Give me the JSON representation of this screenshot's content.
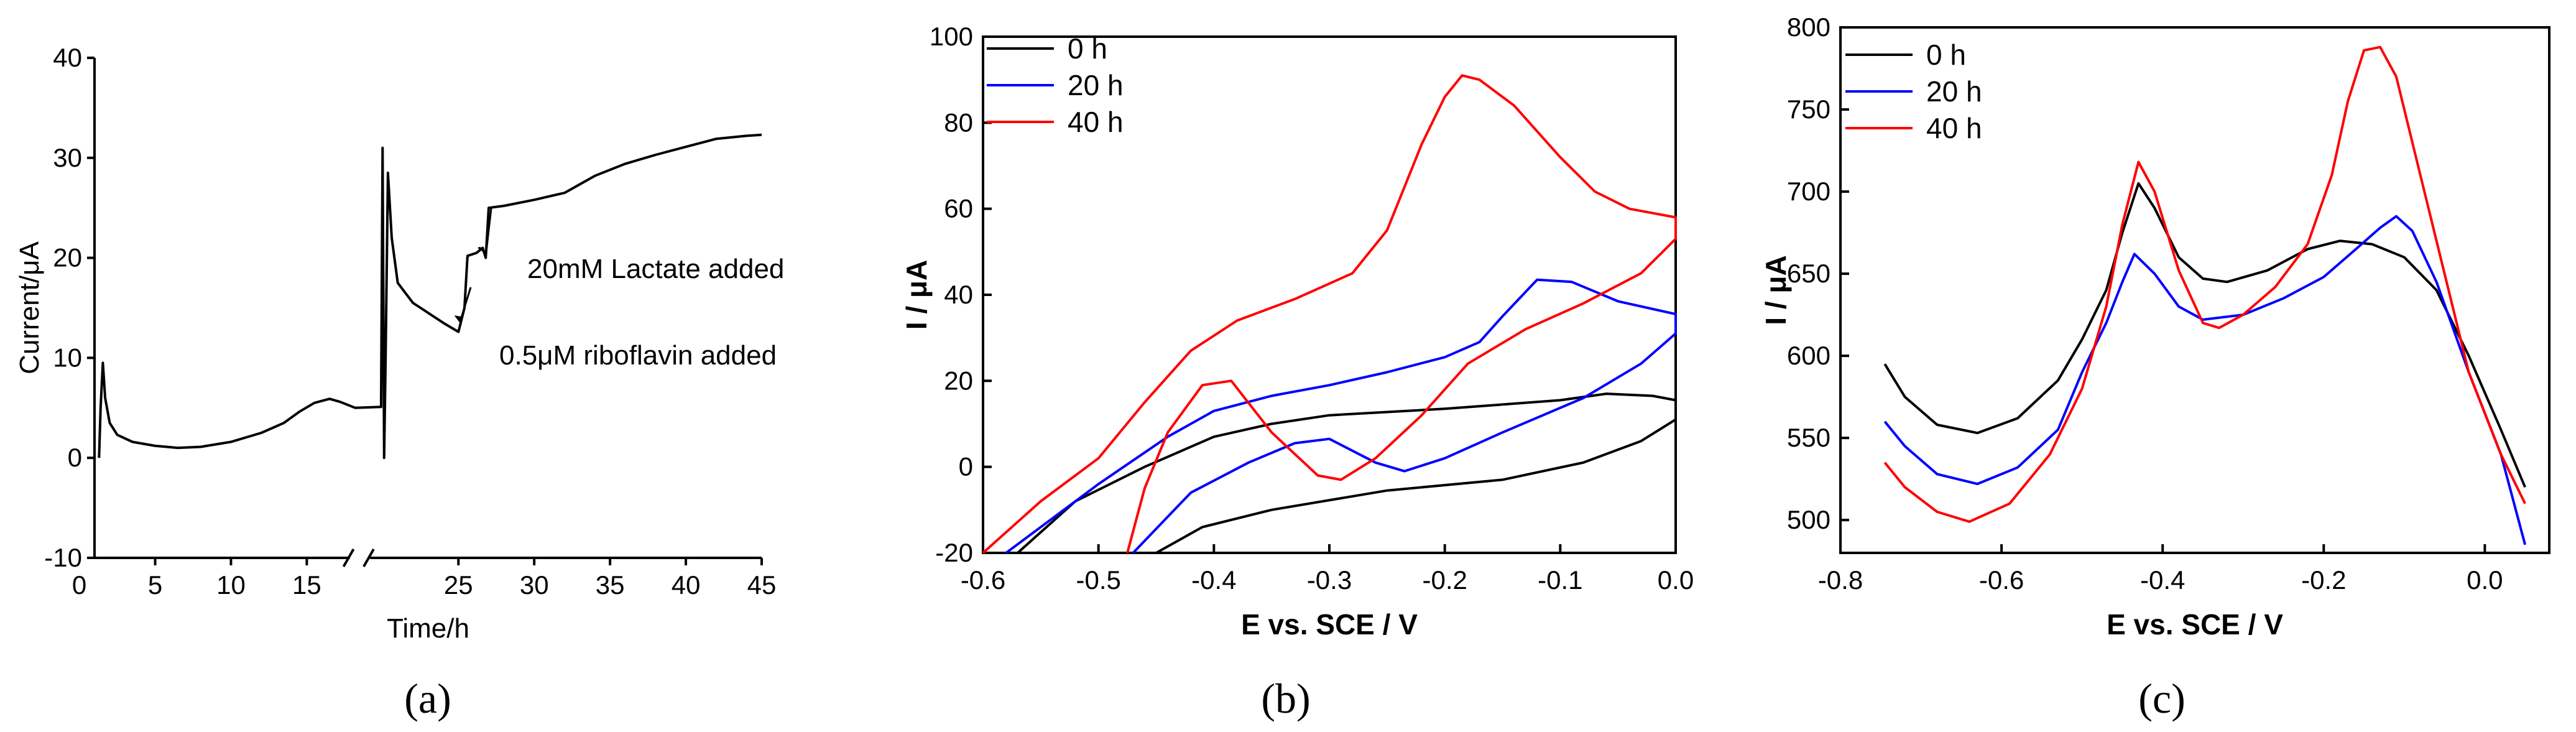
{
  "chart_data": [
    {
      "type": "line",
      "panel_label": "(a)",
      "xlabel": "Time/h",
      "ylabel": "Current/μA",
      "xlim": [
        0,
        45
      ],
      "ylim": [
        -10,
        40
      ],
      "axis_break_between": [
        18,
        19
      ],
      "xticks": [
        0,
        5,
        10,
        15,
        25,
        30,
        35,
        40,
        45
      ],
      "yticks": [
        -10,
        0,
        10,
        20,
        30,
        40
      ],
      "series": [
        {
          "values": [
            [
              1.3,
              0
            ],
            [
              1.4,
              5
            ],
            [
              1.55,
              9.5
            ],
            [
              1.7,
              6
            ],
            [
              2,
              3.5
            ],
            [
              2.5,
              2.3
            ],
            [
              3.5,
              1.6
            ],
            [
              5,
              1.2
            ],
            [
              6.5,
              1.0
            ],
            [
              8,
              1.1
            ],
            [
              10,
              1.6
            ],
            [
              12,
              2.5
            ],
            [
              13.5,
              3.5
            ],
            [
              14.5,
              4.6
            ],
            [
              15.5,
              5.5
            ],
            [
              16.5,
              5.9
            ],
            [
              17.2,
              5.6
            ],
            [
              18.2,
              5.0
            ],
            [
              19.9,
              5.1
            ],
            [
              20,
              31
            ],
            [
              20.05,
              15
            ],
            [
              20.1,
              0
            ],
            [
              20.2,
              10
            ],
            [
              20.35,
              28.5
            ],
            [
              20.6,
              22
            ],
            [
              21,
              17.5
            ],
            [
              22,
              15.5
            ],
            [
              23,
              14.5
            ],
            [
              24,
              13.5
            ],
            [
              25,
              12.6
            ],
            [
              25.4,
              15
            ],
            [
              25.6,
              20.2
            ],
            [
              26.2,
              20.5
            ],
            [
              26.6,
              21
            ],
            [
              26.8,
              20
            ],
            [
              27,
              25
            ],
            [
              28,
              25.2
            ],
            [
              30,
              25.8
            ],
            [
              32,
              26.5
            ],
            [
              34,
              28.2
            ],
            [
              36,
              29.4
            ],
            [
              38,
              30.3
            ],
            [
              40,
              31.1
            ],
            [
              42,
              31.9
            ],
            [
              44,
              32.2
            ],
            [
              45,
              32.3
            ]
          ]
        }
      ],
      "annotations": [
        {
          "text": "0.5μM riboflavin added",
          "points_to": [
            25.3,
            13
          ]
        },
        {
          "text": "20mM Lactate added",
          "points_to": [
            27,
            20
          ]
        }
      ]
    },
    {
      "type": "line",
      "panel_label": "(b)",
      "xlabel": "E vs. SCE / V",
      "ylabel": "I / μA",
      "xlim": [
        -0.6,
        0.0
      ],
      "ylim": [
        -20,
        100
      ],
      "xticks": [
        -0.6,
        -0.5,
        -0.4,
        -0.3,
        -0.2,
        -0.1,
        0.0
      ],
      "yticks": [
        -20,
        0,
        20,
        40,
        60,
        80,
        100
      ],
      "legend_position": "top-left",
      "series": [
        {
          "name": "0 h",
          "color": "#000000",
          "values": [
            [
              -0.57,
              -20
            ],
            [
              -0.52,
              -8
            ],
            [
              -0.46,
              0
            ],
            [
              -0.4,
              7
            ],
            [
              -0.35,
              10
            ],
            [
              -0.3,
              12
            ],
            [
              -0.2,
              13.5
            ],
            [
              -0.1,
              15.5
            ],
            [
              -0.06,
              17
            ],
            [
              -0.02,
              16.5
            ],
            [
              0.0,
              15.5
            ],
            [
              0.0,
              11
            ],
            [
              -0.03,
              6
            ],
            [
              -0.08,
              1
            ],
            [
              -0.15,
              -3
            ],
            [
              -0.25,
              -5.5
            ],
            [
              -0.35,
              -10
            ],
            [
              -0.41,
              -14
            ],
            [
              -0.45,
              -20
            ]
          ]
        },
        {
          "name": "20 h",
          "color": "#0000ff",
          "values": [
            [
              -0.58,
              -20
            ],
            [
              -0.5,
              -4
            ],
            [
              -0.44,
              7
            ],
            [
              -0.4,
              13
            ],
            [
              -0.35,
              16.5
            ],
            [
              -0.3,
              19
            ],
            [
              -0.25,
              22
            ],
            [
              -0.2,
              25.5
            ],
            [
              -0.17,
              29
            ],
            [
              -0.15,
              35
            ],
            [
              -0.12,
              43.5
            ],
            [
              -0.09,
              43
            ],
            [
              -0.05,
              38.5
            ],
            [
              0.0,
              35.5
            ],
            [
              0.0,
              31
            ],
            [
              -0.03,
              24
            ],
            [
              -0.08,
              16
            ],
            [
              -0.15,
              8
            ],
            [
              -0.2,
              2
            ],
            [
              -0.235,
              -1
            ],
            [
              -0.26,
              1
            ],
            [
              -0.3,
              6.5
            ],
            [
              -0.33,
              5.5
            ],
            [
              -0.37,
              1
            ],
            [
              -0.42,
              -6
            ],
            [
              -0.47,
              -20
            ]
          ]
        },
        {
          "name": "40 h",
          "color": "#ff0000",
          "values": [
            [
              -0.6,
              -20
            ],
            [
              -0.55,
              -8
            ],
            [
              -0.5,
              2
            ],
            [
              -0.46,
              15
            ],
            [
              -0.42,
              27
            ],
            [
              -0.38,
              34
            ],
            [
              -0.33,
              39
            ],
            [
              -0.28,
              45
            ],
            [
              -0.25,
              55
            ],
            [
              -0.22,
              75
            ],
            [
              -0.2,
              86
            ],
            [
              -0.185,
              91
            ],
            [
              -0.17,
              90
            ],
            [
              -0.14,
              84
            ],
            [
              -0.1,
              72
            ],
            [
              -0.07,
              64
            ],
            [
              -0.04,
              60
            ],
            [
              0.0,
              58
            ],
            [
              0.0,
              53
            ],
            [
              -0.03,
              45
            ],
            [
              -0.08,
              38
            ],
            [
              -0.13,
              32
            ],
            [
              -0.18,
              24
            ],
            [
              -0.22,
              12
            ],
            [
              -0.26,
              2
            ],
            [
              -0.29,
              -3
            ],
            [
              -0.31,
              -2
            ],
            [
              -0.35,
              8
            ],
            [
              -0.385,
              20
            ],
            [
              -0.41,
              19
            ],
            [
              -0.44,
              8
            ],
            [
              -0.46,
              -5
            ],
            [
              -0.475,
              -20
            ]
          ]
        }
      ]
    },
    {
      "type": "line",
      "panel_label": "(c)",
      "xlabel": "E vs. SCE / V",
      "ylabel": "I / μA",
      "xlim": [
        -0.8,
        0.08
      ],
      "ylim": [
        480,
        800
      ],
      "xticks": [
        -0.8,
        -0.6,
        -0.4,
        -0.2,
        0.0
      ],
      "yticks": [
        500,
        550,
        600,
        650,
        700,
        750,
        800
      ],
      "legend_position": "top-left",
      "series": [
        {
          "name": "0 h",
          "color": "#000000",
          "values": [
            [
              -0.745,
              595
            ],
            [
              -0.72,
              575
            ],
            [
              -0.68,
              558
            ],
            [
              -0.63,
              553
            ],
            [
              -0.58,
              562
            ],
            [
              -0.53,
              585
            ],
            [
              -0.5,
              610
            ],
            [
              -0.47,
              640
            ],
            [
              -0.45,
              675
            ],
            [
              -0.43,
              705
            ],
            [
              -0.41,
              690
            ],
            [
              -0.38,
              660
            ],
            [
              -0.35,
              647
            ],
            [
              -0.32,
              645
            ],
            [
              -0.27,
              652
            ],
            [
              -0.22,
              665
            ],
            [
              -0.18,
              670
            ],
            [
              -0.14,
              668
            ],
            [
              -0.1,
              660
            ],
            [
              -0.06,
              640
            ],
            [
              -0.02,
              600
            ],
            [
              0.02,
              555
            ],
            [
              0.05,
              520
            ]
          ]
        },
        {
          "name": "20 h",
          "color": "#0000ff",
          "values": [
            [
              -0.745,
              560
            ],
            [
              -0.72,
              545
            ],
            [
              -0.68,
              528
            ],
            [
              -0.63,
              522
            ],
            [
              -0.58,
              532
            ],
            [
              -0.53,
              555
            ],
            [
              -0.5,
              590
            ],
            [
              -0.47,
              620
            ],
            [
              -0.45,
              645
            ],
            [
              -0.435,
              662
            ],
            [
              -0.41,
              650
            ],
            [
              -0.38,
              630
            ],
            [
              -0.35,
              622
            ],
            [
              -0.3,
              625
            ],
            [
              -0.25,
              635
            ],
            [
              -0.2,
              648
            ],
            [
              -0.16,
              665
            ],
            [
              -0.13,
              678
            ],
            [
              -0.11,
              685
            ],
            [
              -0.09,
              676
            ],
            [
              -0.06,
              645
            ],
            [
              -0.02,
              590
            ],
            [
              0.02,
              540
            ],
            [
              0.05,
              485
            ]
          ]
        },
        {
          "name": "40 h",
          "color": "#ff0000",
          "values": [
            [
              -0.745,
              535
            ],
            [
              -0.72,
              520
            ],
            [
              -0.68,
              505
            ],
            [
              -0.64,
              499
            ],
            [
              -0.59,
              510
            ],
            [
              -0.54,
              540
            ],
            [
              -0.5,
              580
            ],
            [
              -0.47,
              630
            ],
            [
              -0.45,
              680
            ],
            [
              -0.43,
              718
            ],
            [
              -0.41,
              700
            ],
            [
              -0.38,
              652
            ],
            [
              -0.35,
              620
            ],
            [
              -0.33,
              617
            ],
            [
              -0.3,
              625
            ],
            [
              -0.26,
              642
            ],
            [
              -0.22,
              668
            ],
            [
              -0.19,
              710
            ],
            [
              -0.17,
              755
            ],
            [
              -0.15,
              786
            ],
            [
              -0.13,
              788
            ],
            [
              -0.11,
              770
            ],
            [
              -0.08,
              710
            ],
            [
              -0.05,
              650
            ],
            [
              -0.02,
              590
            ],
            [
              0.02,
              540
            ],
            [
              0.05,
              510
            ]
          ]
        }
      ]
    }
  ]
}
